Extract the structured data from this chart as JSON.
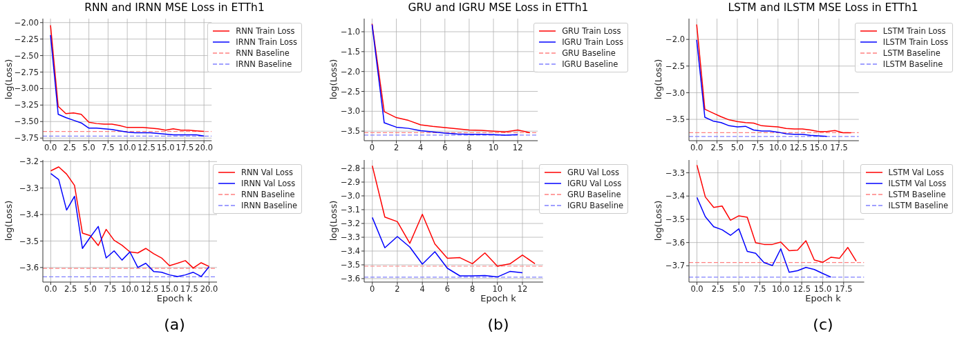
{
  "chart_data": [
    {
      "type": "line",
      "title": "RNN and IRNN MSE Loss in ETTh1",
      "ylabel": "log(Loss)",
      "x": [
        0,
        1,
        2,
        3,
        4,
        5,
        6,
        7,
        8,
        9,
        10,
        11,
        12,
        13,
        14,
        15,
        16,
        17,
        18,
        19,
        20
      ],
      "xlim": [
        -1,
        21
      ],
      "xticks": [
        {
          "value": 0,
          "label": "0.0"
        },
        {
          "value": 2.5,
          "label": "2.5"
        },
        {
          "value": 5,
          "label": "5.0"
        },
        {
          "value": 7.5,
          "label": "7.5"
        },
        {
          "value": 10,
          "label": "10.0"
        },
        {
          "value": 12.5,
          "label": "12.5"
        },
        {
          "value": 15,
          "label": "15.0"
        },
        {
          "value": 17.5,
          "label": "17.5"
        },
        {
          "value": 20,
          "label": "20.0"
        }
      ],
      "ylim": [
        -3.79,
        -1.94
      ],
      "yticks": [
        {
          "value": -2,
          "label": "−2.00"
        },
        {
          "value": -2.25,
          "label": "−2.25"
        },
        {
          "value": -2.5,
          "label": "−2.50"
        },
        {
          "value": -2.75,
          "label": "−2.75"
        },
        {
          "value": -3,
          "label": "−3.00"
        },
        {
          "value": -3.25,
          "label": "−3.25"
        },
        {
          "value": -3.5,
          "label": "−3.50"
        },
        {
          "value": -3.75,
          "label": "−3.75"
        }
      ],
      "grid": true,
      "legend": "top right",
      "marker": "none",
      "line_style": "solid",
      "series": [
        {
          "name": "RNN Train Loss",
          "color": "#ff0000",
          "values": [
            -2.04,
            -3.27,
            -3.38,
            -3.37,
            -3.39,
            -3.51,
            -3.53,
            -3.54,
            -3.54,
            -3.56,
            -3.59,
            -3.59,
            -3.59,
            -3.6,
            -3.61,
            -3.63,
            -3.61,
            -3.63,
            -3.63,
            -3.64,
            -3.65
          ]
        },
        {
          "name": "IRNN Train Loss",
          "color": "#0000ff",
          "values": [
            -2.19,
            -3.39,
            -3.44,
            -3.48,
            -3.52,
            -3.6,
            -3.6,
            -3.61,
            -3.62,
            -3.64,
            -3.66,
            -3.67,
            -3.67,
            -3.67,
            -3.68,
            -3.69,
            -3.7,
            -3.7,
            -3.7,
            -3.7,
            -3.72
          ]
        }
      ],
      "ref_lines": [
        {
          "axis": "y",
          "value": -3.65,
          "label": "RNN Baseline",
          "color": "#ff8080",
          "line_style": "dashed"
        },
        {
          "axis": "y",
          "value": -3.72,
          "label": "IRNN Baseline",
          "color": "#8080ff",
          "line_style": "dashed"
        }
      ]
    },
    {
      "type": "line",
      "title": "GRU and IGRU MSE Loss in ETTh1",
      "ylabel": "log(Loss)",
      "x": [
        0,
        1,
        2,
        3,
        4,
        5,
        6,
        7,
        8,
        9,
        10,
        11,
        12,
        13
      ],
      "xlim": [
        -0.65,
        13.65
      ],
      "xticks": [
        0,
        2,
        4,
        6,
        8,
        10,
        12
      ],
      "ylim": [
        -3.74,
        -0.67
      ],
      "yticks": [
        {
          "value": -1,
          "label": "−1.0"
        },
        {
          "value": -1.5,
          "label": "−1.5"
        },
        {
          "value": -2,
          "label": "−2.0"
        },
        {
          "value": -2.5,
          "label": "−2.5"
        },
        {
          "value": -3,
          "label": "−3.0"
        },
        {
          "value": -3.5,
          "label": "−3.5"
        }
      ],
      "grid": true,
      "legend": "top right",
      "marker": "none",
      "line_style": "solid",
      "series": [
        {
          "name": "GRU Train Loss",
          "color": "#ff0000",
          "values": [
            -0.8,
            -3.01,
            -3.16,
            -3.23,
            -3.34,
            -3.38,
            -3.41,
            -3.44,
            -3.47,
            -3.48,
            -3.5,
            -3.52,
            -3.47,
            -3.54
          ]
        },
        {
          "name": "IGRU Train Loss",
          "color": "#0000ff",
          "values": [
            -0.82,
            -3.29,
            -3.4,
            -3.43,
            -3.49,
            -3.52,
            -3.55,
            -3.57,
            -3.58,
            -3.58,
            -3.59,
            -3.6,
            -3.59,
            null
          ]
        }
      ],
      "ref_lines": [
        {
          "axis": "y",
          "value": -3.54,
          "label": "GRU Baseline",
          "color": "#ff8080",
          "line_style": "dashed"
        },
        {
          "axis": "y",
          "value": -3.6,
          "label": "IGRU Baseline",
          "color": "#8080ff",
          "line_style": "dashed"
        }
      ]
    },
    {
      "type": "line",
      "title": "LSTM and ILSTM MSE Loss in ETTh1",
      "ylabel": "log(Loss)",
      "x": [
        0,
        1,
        2,
        3,
        4,
        5,
        6,
        7,
        8,
        9,
        10,
        11,
        12,
        13,
        14,
        15,
        16,
        17,
        18,
        19
      ],
      "xlim": [
        -0.95,
        19.95
      ],
      "xticks": [
        {
          "value": 0,
          "label": "0.0"
        },
        {
          "value": 2.5,
          "label": "2.5"
        },
        {
          "value": 5,
          "label": "5.0"
        },
        {
          "value": 7.5,
          "label": "7.5"
        },
        {
          "value": 10,
          "label": "10.0"
        },
        {
          "value": 12.5,
          "label": "12.5"
        },
        {
          "value": 15,
          "label": "15.0"
        },
        {
          "value": 17.5,
          "label": "17.5"
        }
      ],
      "ylim": [
        -3.9,
        -1.61
      ],
      "yticks": [
        {
          "value": -2,
          "label": "−2.0"
        },
        {
          "value": -2.5,
          "label": "−2.5"
        },
        {
          "value": -3,
          "label": "−3.0"
        },
        {
          "value": -3.5,
          "label": "−3.5"
        }
      ],
      "grid": true,
      "legend": "top right",
      "marker": "none",
      "line_style": "solid",
      "series": [
        {
          "name": "LSTM Train Loss",
          "color": "#ff0000",
          "values": [
            -1.72,
            -3.31,
            -3.38,
            -3.45,
            -3.51,
            -3.54,
            -3.56,
            -3.57,
            -3.62,
            -3.63,
            -3.64,
            -3.67,
            -3.68,
            -3.68,
            -3.7,
            -3.73,
            -3.73,
            -3.71,
            -3.75,
            -3.75
          ]
        },
        {
          "name": "ILSTM Train Loss",
          "color": "#0000ff",
          "values": [
            -2.01,
            -3.46,
            -3.53,
            -3.56,
            -3.62,
            -3.64,
            -3.63,
            -3.7,
            -3.72,
            -3.72,
            -3.74,
            -3.77,
            -3.78,
            -3.78,
            -3.8,
            -3.81,
            -3.82,
            null,
            null,
            null
          ]
        }
      ],
      "ref_lines": [
        {
          "axis": "y",
          "value": -3.75,
          "label": "LSTM Baseline",
          "color": "#ff8080",
          "line_style": "dashed"
        },
        {
          "axis": "y",
          "value": -3.82,
          "label": "ILSTM Baseline",
          "color": "#8080ff",
          "line_style": "dashed"
        }
      ]
    },
    {
      "type": "line",
      "xlabel": "Epoch k",
      "ylabel": "log(Loss)",
      "annotations": [
        "(a)"
      ],
      "x": [
        0,
        1,
        2,
        3,
        4,
        5,
        6,
        7,
        8,
        9,
        10,
        11,
        12,
        13,
        14,
        15,
        16,
        17,
        18,
        19,
        20
      ],
      "xlim": [
        -1,
        21
      ],
      "xticks": [
        {
          "value": 0,
          "label": "0.0"
        },
        {
          "value": 2.5,
          "label": "2.5"
        },
        {
          "value": 5,
          "label": "5.0"
        },
        {
          "value": 7.5,
          "label": "7.5"
        },
        {
          "value": 10,
          "label": "10.0"
        },
        {
          "value": 12.5,
          "label": "12.5"
        },
        {
          "value": 15,
          "label": "15.0"
        },
        {
          "value": 17.5,
          "label": "17.5"
        },
        {
          "value": 20,
          "label": "20.0"
        }
      ],
      "ylim": [
        -3.655,
        -3.194
      ],
      "yticks": [
        {
          "value": -3.2,
          "label": "−3.2"
        },
        {
          "value": -3.3,
          "label": "−3.3"
        },
        {
          "value": -3.4,
          "label": "−3.4"
        },
        {
          "value": -3.5,
          "label": "−3.5"
        },
        {
          "value": -3.6,
          "label": "−3.6"
        }
      ],
      "grid": true,
      "legend": "top right",
      "marker": "none",
      "line_style": "solid",
      "series": [
        {
          "name": "RNN Val Loss",
          "color": "#ff0000",
          "values": [
            -3.235,
            -3.22,
            -3.247,
            -3.29,
            -3.47,
            -3.48,
            -3.517,
            -3.456,
            -3.497,
            -3.516,
            -3.541,
            -3.545,
            -3.528,
            -3.548,
            -3.564,
            -3.593,
            -3.584,
            -3.574,
            -3.602,
            -3.582,
            -3.596
          ]
        },
        {
          "name": "IRNN Val Loss",
          "color": "#0000ff",
          "values": [
            -3.245,
            -3.268,
            -3.383,
            -3.331,
            -3.528,
            -3.485,
            -3.445,
            -3.564,
            -3.537,
            -3.572,
            -3.541,
            -3.6,
            -3.584,
            -3.615,
            -3.618,
            -3.628,
            -3.634,
            -3.628,
            -3.618,
            -3.634,
            -3.597
          ]
        }
      ],
      "ref_lines": [
        {
          "axis": "y",
          "value": -3.603,
          "label": "RNN Baseline",
          "color": "#ff8080",
          "line_style": "dashed"
        },
        {
          "axis": "y",
          "value": -3.635,
          "label": "IRNN Baseline",
          "color": "#8080ff",
          "line_style": "dashed"
        }
      ]
    },
    {
      "type": "line",
      "xlabel": "Epoch k",
      "ylabel": "log(Loss)",
      "annotations": [
        "(b)"
      ],
      "x": [
        0,
        1,
        2,
        3,
        4,
        5,
        6,
        7,
        8,
        9,
        10,
        11,
        12,
        13
      ],
      "xlim": [
        -0.65,
        13.65
      ],
      "xticks": [
        0,
        2,
        4,
        6,
        8,
        10,
        12
      ],
      "ylim": [
        -3.625,
        -2.74
      ],
      "yticks": [
        {
          "value": -2.8,
          "label": "−2.8"
        },
        {
          "value": -2.9,
          "label": "−2.9"
        },
        {
          "value": -3,
          "label": "−3.0"
        },
        {
          "value": -3.1,
          "label": "−3.1"
        },
        {
          "value": -3.2,
          "label": "−3.2"
        },
        {
          "value": -3.3,
          "label": "−3.3"
        },
        {
          "value": -3.4,
          "label": "−3.4"
        },
        {
          "value": -3.5,
          "label": "−3.5"
        },
        {
          "value": -3.6,
          "label": "−3.6"
        }
      ],
      "grid": true,
      "legend": "top right",
      "marker": "none",
      "line_style": "solid",
      "series": [
        {
          "name": "GRU Val Loss",
          "color": "#ff0000",
          "values": [
            -2.782,
            -3.154,
            -3.187,
            -3.344,
            -3.134,
            -3.349,
            -3.452,
            -3.448,
            -3.492,
            -3.414,
            -3.51,
            -3.493,
            -3.429,
            -3.492
          ]
        },
        {
          "name": "IGRU Val Loss",
          "color": "#0000ff",
          "values": [
            -3.157,
            -3.376,
            -3.295,
            -3.371,
            -3.495,
            -3.405,
            -3.525,
            -3.58,
            -3.58,
            -3.578,
            -3.588,
            -3.548,
            -3.558,
            null
          ]
        }
      ],
      "ref_lines": [
        {
          "axis": "y",
          "value": -3.51,
          "label": "GRU Baseline",
          "color": "#ff8080",
          "line_style": "dashed"
        },
        {
          "axis": "y",
          "value": -3.589,
          "label": "IGRU Baseline",
          "color": "#8080ff",
          "line_style": "dashed"
        }
      ]
    },
    {
      "type": "line",
      "xlabel": "Epoch k",
      "ylabel": "log(Loss)",
      "annotations": [
        "(c)"
      ],
      "x": [
        0,
        1,
        2,
        3,
        4,
        5,
        6,
        7,
        8,
        9,
        10,
        11,
        12,
        13,
        14,
        15,
        16,
        17,
        18,
        19
      ],
      "xlim": [
        -0.95,
        19.95
      ],
      "xticks": [
        {
          "value": 0,
          "label": "0.0"
        },
        {
          "value": 2.5,
          "label": "2.5"
        },
        {
          "value": 5,
          "label": "5.0"
        },
        {
          "value": 7.5,
          "label": "7.5"
        },
        {
          "value": 10,
          "label": "10.0"
        },
        {
          "value": 12.5,
          "label": "12.5"
        },
        {
          "value": 15,
          "label": "15.0"
        },
        {
          "value": 17.5,
          "label": "17.5"
        }
      ],
      "ylim": [
        -3.77,
        -3.245
      ],
      "yticks": [
        {
          "value": -3.3,
          "label": "−3.3"
        },
        {
          "value": -3.4,
          "label": "−3.4"
        },
        {
          "value": -3.5,
          "label": "−3.5"
        },
        {
          "value": -3.6,
          "label": "−3.6"
        },
        {
          "value": -3.7,
          "label": "−3.7"
        }
      ],
      "grid": true,
      "legend": "top right",
      "marker": "none",
      "line_style": "solid",
      "series": [
        {
          "name": "LSTM Val Loss",
          "color": "#ff0000",
          "values": [
            -3.267,
            -3.404,
            -3.449,
            -3.443,
            -3.504,
            -3.485,
            -3.491,
            -3.601,
            -3.608,
            -3.608,
            -3.598,
            -3.635,
            -3.633,
            -3.592,
            -3.675,
            -3.685,
            -3.663,
            -3.668,
            -3.621,
            -3.68
          ]
        },
        {
          "name": "ILSTM Val Loss",
          "color": "#0000ff",
          "values": [
            -3.406,
            -3.489,
            -3.532,
            -3.545,
            -3.569,
            -3.541,
            -3.638,
            -3.646,
            -3.686,
            -3.699,
            -3.627,
            -3.728,
            -3.721,
            -3.707,
            -3.716,
            -3.733,
            -3.749,
            null,
            null,
            null
          ]
        }
      ],
      "ref_lines": [
        {
          "axis": "y",
          "value": -3.686,
          "label": "LSTM Baseline",
          "color": "#ff8080",
          "line_style": "dashed"
        },
        {
          "axis": "y",
          "value": -3.749,
          "label": "ILSTM Baseline",
          "color": "#8080ff",
          "line_style": "dashed"
        }
      ]
    }
  ]
}
